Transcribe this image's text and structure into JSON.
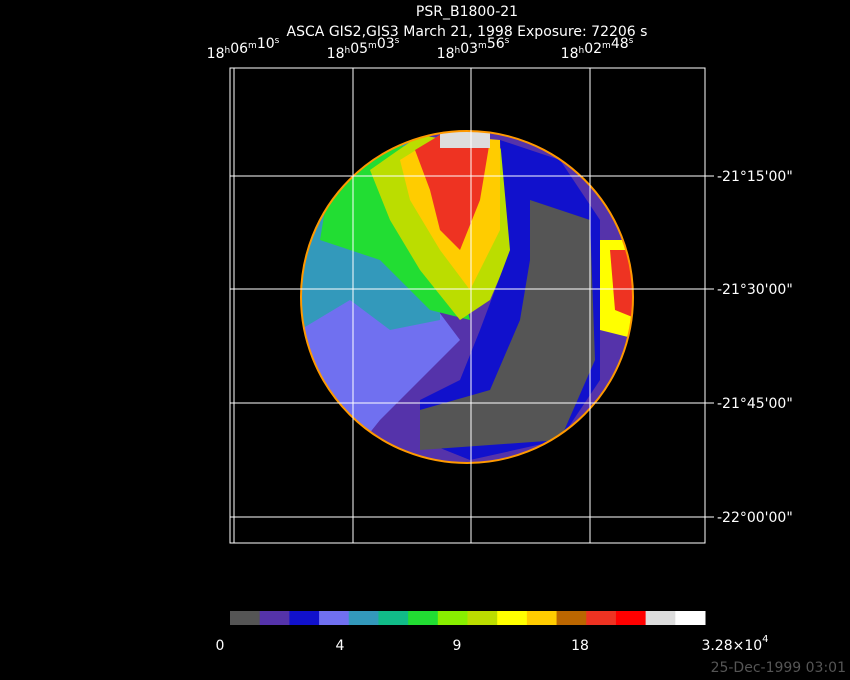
{
  "header": {
    "title": "PSR_B1800-21",
    "subtitle": "ASCA GIS2,GIS3 March 21, 1998 Exposure: 72206 s"
  },
  "ra_units": {
    "hours": "h",
    "minutes": "m",
    "seconds": "s"
  },
  "ra_labels": [
    {
      "hours": "18",
      "minutes": "06",
      "seconds": "10"
    },
    {
      "hours": "18",
      "minutes": "05",
      "seconds": "03"
    },
    {
      "hours": "18",
      "minutes": "03",
      "seconds": "56"
    },
    {
      "hours": "18",
      "minutes": "02",
      "seconds": "48"
    }
  ],
  "dec_labels": [
    "-21°15'00\"",
    "-21°30'00\"",
    "-21°45'00\"",
    "-22°00'00\""
  ],
  "colorbar": {
    "colors": [
      "#555555",
      "#5533aa",
      "#1111cc",
      "#7070f0",
      "#3399bb",
      "#11bb88",
      "#22dd33",
      "#88ee00",
      "#bbdd00",
      "#ffff00",
      "#ffcc00",
      "#bb6600",
      "#ee3322",
      "#ff0000",
      "#dddddd",
      "#ffffff"
    ],
    "labels": [
      "0",
      "4",
      "9",
      "18"
    ],
    "max_label": {
      "mantissa": "3.28×10",
      "exponent": "4"
    }
  },
  "timestamp": "25-Dec-1999 03:01"
}
